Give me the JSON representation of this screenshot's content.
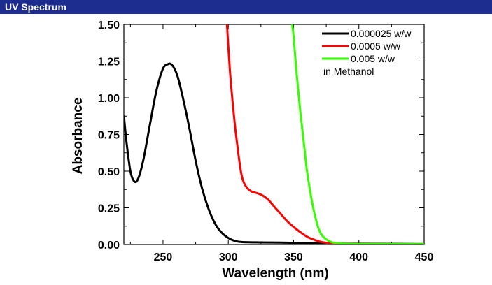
{
  "header": {
    "title": "UV Spectrum"
  },
  "colors": {
    "header_bg": "#1d2c8f",
    "header_text": "#ffffff"
  },
  "chart_data": {
    "type": "line",
    "title": "UV Spectrum",
    "xlabel": "Wavelength (nm)",
    "ylabel": "Absorbance",
    "xlim": [
      220,
      450
    ],
    "ylim": [
      0.0,
      1.5
    ],
    "x_ticks": [
      250,
      300,
      350,
      400,
      450
    ],
    "x_tick_labels": [
      "250",
      "300",
      "350",
      "400",
      "450"
    ],
    "y_ticks": [
      0.0,
      0.25,
      0.5,
      0.75,
      1.0,
      1.25,
      1.5
    ],
    "y_tick_labels": [
      "0.00",
      "0.25",
      "0.50",
      "0.75",
      "1.00",
      "1.25",
      "1.50"
    ],
    "grid": false,
    "legend_position": "top-right",
    "legend_note": "in Methanol",
    "series": [
      {
        "name": "0.000025 w/w",
        "color": "#000000",
        "x": [
          220,
          222,
          225,
          228,
          231,
          235,
          240,
          245,
          250,
          254,
          256,
          258,
          261,
          265,
          270,
          275,
          280,
          285,
          290,
          295,
          300,
          305,
          310,
          320,
          340,
          360,
          380,
          400,
          450
        ],
        "y": [
          0.88,
          0.7,
          0.5,
          0.43,
          0.45,
          0.58,
          0.82,
          1.05,
          1.2,
          1.23,
          1.23,
          1.21,
          1.15,
          1.01,
          0.8,
          0.57,
          0.38,
          0.24,
          0.14,
          0.08,
          0.045,
          0.025,
          0.017,
          0.015,
          0.013,
          0.01,
          0.007,
          0.005,
          0.003
        ]
      },
      {
        "name": "0.0005 w/w",
        "color": "#ff0000",
        "x": [
          299,
          300,
          302,
          305,
          308,
          310,
          312,
          315,
          318,
          320,
          325,
          330,
          335,
          340,
          345,
          350,
          355,
          360,
          365,
          370,
          375,
          380,
          390,
          400,
          450
        ],
        "y": [
          1.5,
          1.35,
          1.1,
          0.82,
          0.6,
          0.48,
          0.42,
          0.38,
          0.36,
          0.355,
          0.34,
          0.31,
          0.26,
          0.21,
          0.16,
          0.12,
          0.085,
          0.055,
          0.035,
          0.02,
          0.012,
          0.008,
          0.005,
          0.004,
          0.002
        ]
      },
      {
        "name": "0.005 w/w",
        "color": "#33ff00",
        "x": [
          349,
          350,
          352,
          355,
          358,
          360,
          362,
          365,
          368,
          370,
          372,
          375,
          378,
          380,
          385,
          390,
          400,
          450
        ],
        "y": [
          1.5,
          1.42,
          1.2,
          0.92,
          0.68,
          0.52,
          0.4,
          0.25,
          0.14,
          0.09,
          0.06,
          0.035,
          0.02,
          0.014,
          0.008,
          0.005,
          0.003,
          0.002
        ]
      }
    ]
  }
}
